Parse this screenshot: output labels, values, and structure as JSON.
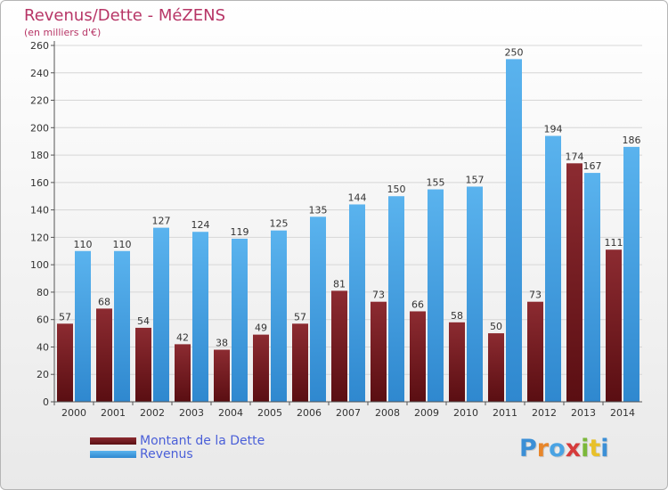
{
  "title": "Revenus/Dette - MéZENS",
  "subtitle": "(en milliers d'€)",
  "legend": {
    "dette": "Montant de la Dette",
    "revenus": "Revenus"
  },
  "logo": {
    "text": "Proxiti"
  },
  "colors": {
    "dette": "#7a1f24",
    "revenus": "#4aa3e3",
    "title": "#b73566",
    "legend_text": "#4a5fd8"
  },
  "chart_data": {
    "type": "bar",
    "title": "Revenus/Dette - MéZENS",
    "ylabel": "(en milliers d'€)",
    "xlabel": "",
    "ylim": [
      0,
      260
    ],
    "yticks": [
      0,
      20,
      40,
      60,
      80,
      100,
      120,
      140,
      160,
      180,
      200,
      220,
      240,
      260
    ],
    "grid": true,
    "legend_position": "bottom-left",
    "categories": [
      "2000",
      "2001",
      "2002",
      "2003",
      "2004",
      "2005",
      "2006",
      "2007",
      "2008",
      "2009",
      "2010",
      "2011",
      "2012",
      "2013",
      "2014"
    ],
    "series": [
      {
        "name": "Montant de la Dette",
        "values": [
          57,
          68,
          54,
          42,
          38,
          49,
          57,
          81,
          73,
          66,
          58,
          50,
          73,
          174,
          111
        ]
      },
      {
        "name": "Revenus",
        "values": [
          110,
          110,
          127,
          124,
          119,
          125,
          135,
          144,
          150,
          155,
          157,
          250,
          194,
          167,
          186
        ]
      }
    ]
  }
}
